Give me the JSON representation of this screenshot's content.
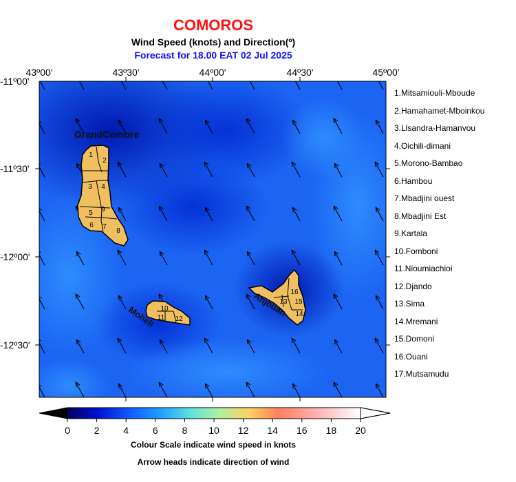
{
  "title": "COMOROS",
  "subtitle": "Wind Speed (knots) and Direction(º)",
  "forecast": "Forecast for  18.00 EAT 02 Jul 2025",
  "lon_labels": [
    "43º00'",
    "43º30'",
    "44º00'",
    "44º30'",
    "45º00'"
  ],
  "lat_labels": [
    "-11º00'",
    "-11º30'",
    "-12º00'",
    "-12º30'"
  ],
  "island_labels": {
    "grande_comore": "GrandComore",
    "moheli": "Moheli",
    "anjouan": "Anjouan"
  },
  "legend_items": [
    "1.Mitsamiouli-Mboude",
    "2.Hamahamet-Mboinkou",
    "3.Llsandra-Hamanvou",
    "4.Oichili-dimani",
    "5.Morono-Bambao",
    "6.Hambou",
    "7.Mbadjini ouest",
    "8.Mbadjini Est",
    "9.Kartala",
    "10.Fomboni",
    "11.Nioumiachioi",
    "12.Djando",
    "13.Sima",
    "14.Mremani",
    "15.Domoni",
    "16.Ouani",
    "17.Mutsamudu"
  ],
  "region_numbers": {
    "gc": [
      "1",
      "2",
      "3",
      "4",
      "5",
      "9",
      "6",
      "7",
      "8"
    ],
    "moheli": [
      "10",
      "11",
      "12"
    ],
    "anjouan": [
      "13",
      "15",
      "14",
      "16"
    ]
  },
  "colorbar": {
    "ticks": [
      "0",
      "2",
      "4",
      "6",
      "8",
      "10",
      "12",
      "14",
      "16",
      "18",
      "20"
    ],
    "min": 0,
    "max": 20,
    "unit": "knots"
  },
  "colorbar_caption": "Colour Scale indicate wind speed in knots",
  "arrow_caption": "Arrow heads indicate direction of wind",
  "colors": {
    "title": "#ff1010",
    "forecast": "#1010ff",
    "land": "#f0c060",
    "sea_low": "#0020c0",
    "sea_high": "#2090ff"
  }
}
